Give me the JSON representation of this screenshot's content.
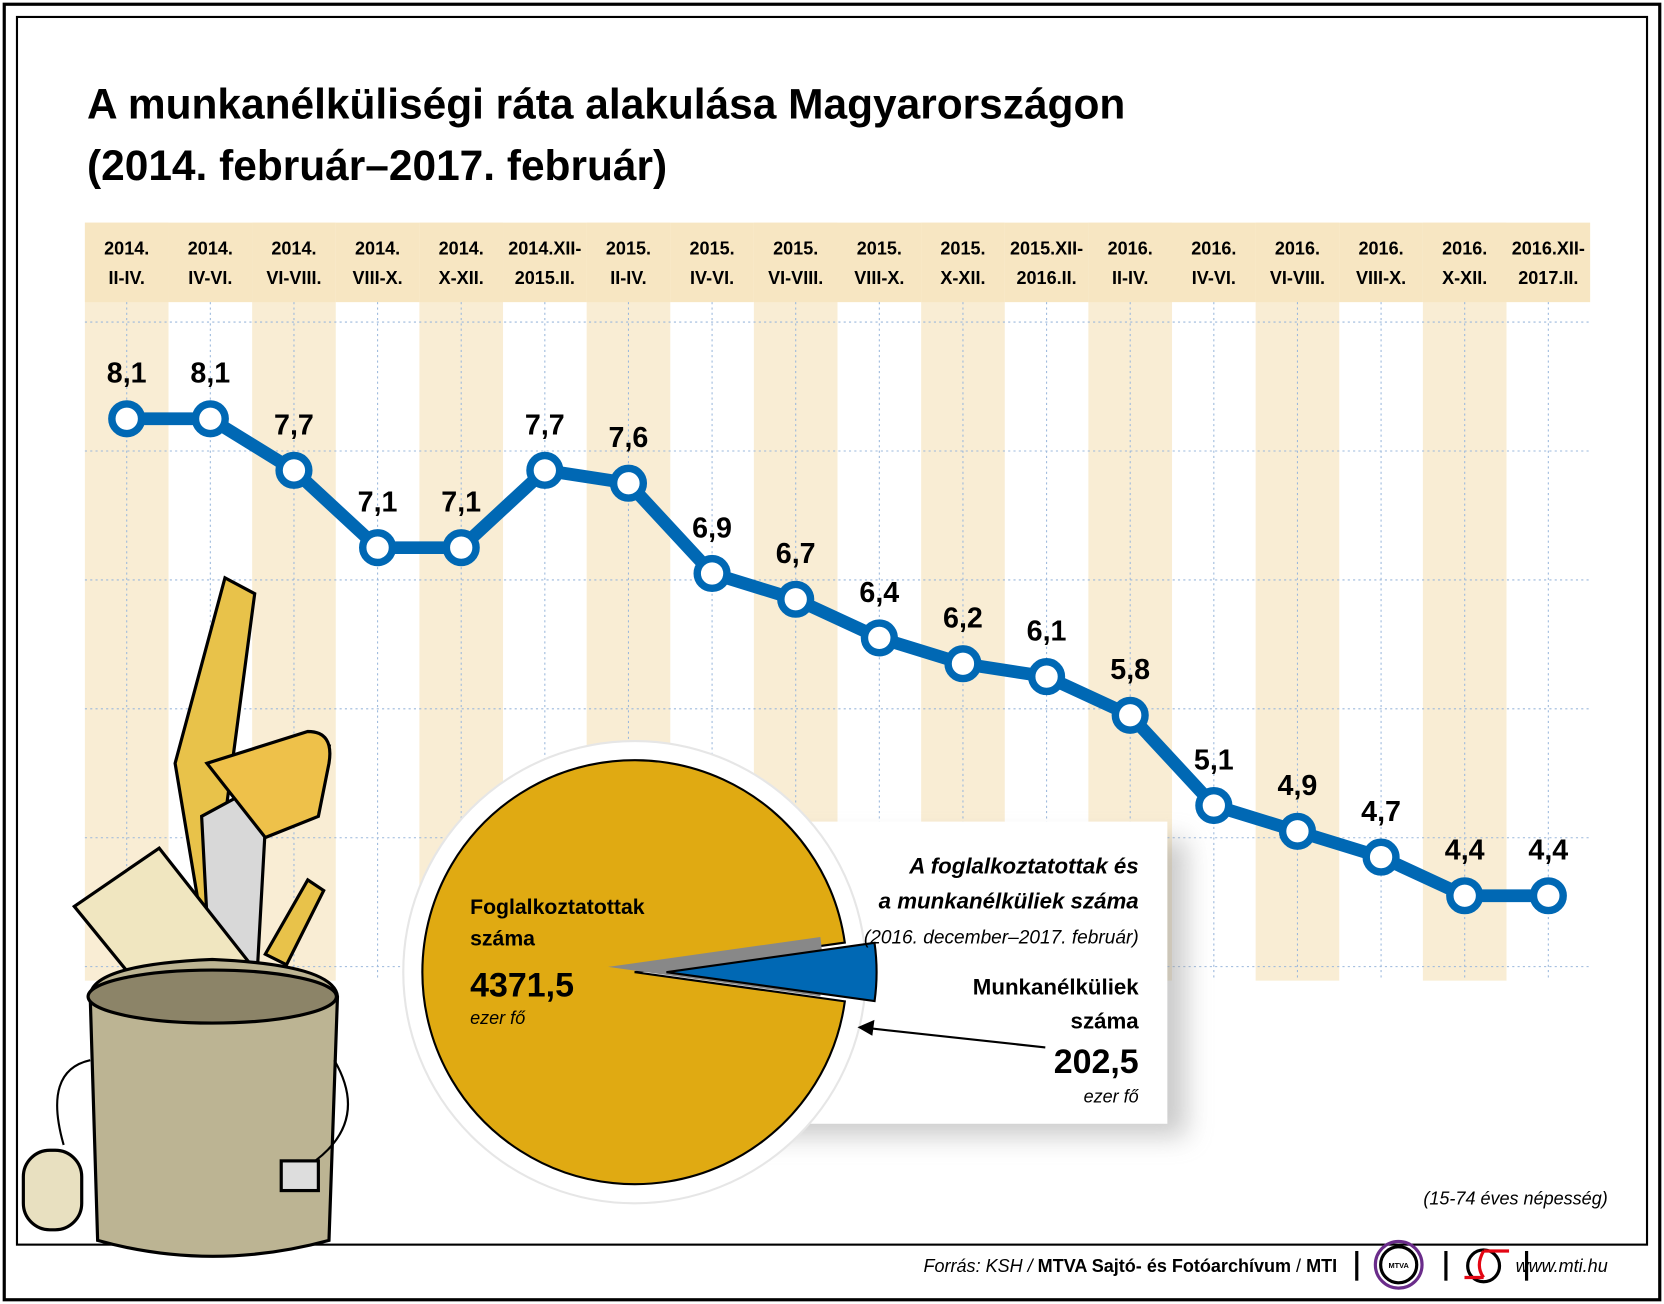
{
  "chart_data": {
    "type": "line",
    "title": "A munkanélküliségi ráta alakulása Magyarországon",
    "subtitle": "(2014. február–2017. február)",
    "categories": [
      [
        "2014.",
        "II-IV."
      ],
      [
        "2014.",
        "IV-VI."
      ],
      [
        "2014.",
        "VI-VIII."
      ],
      [
        "2014.",
        "VIII-X."
      ],
      [
        "2014.",
        "X-XII."
      ],
      [
        "2014.XII-",
        "2015.II."
      ],
      [
        "2015.",
        "II-IV."
      ],
      [
        "2015.",
        "IV-VI."
      ],
      [
        "2015.",
        "VI-VIII."
      ],
      [
        "2015.",
        "VIII-X."
      ],
      [
        "2015.",
        "X-XII."
      ],
      [
        "2015.XII-",
        "2016.II."
      ],
      [
        "2016.",
        "II-IV."
      ],
      [
        "2016.",
        "IV-VI."
      ],
      [
        "2016.",
        "VI-VIII."
      ],
      [
        "2016.",
        "VIII-X."
      ],
      [
        "2016.",
        "X-XII."
      ],
      [
        "2016.XII-",
        "2017.II."
      ]
    ],
    "values": [
      8.1,
      8.1,
      7.7,
      7.1,
      7.1,
      7.7,
      7.6,
      6.9,
      6.7,
      6.4,
      6.2,
      6.1,
      5.8,
      5.1,
      4.9,
      4.7,
      4.4,
      4.4
    ],
    "value_labels": [
      "8,1",
      "8,1",
      "7,7",
      "7,1",
      "7,1",
      "7,7",
      "7,6",
      "6,9",
      "6,7",
      "6,4",
      "6,2",
      "6,1",
      "5,8",
      "5,1",
      "4,9",
      "4,7",
      "4,4",
      "4,4"
    ],
    "line_color": "#0068b4",
    "band_color": "#f7e6c2",
    "grid": true,
    "note": "(15-74 éves népesség)",
    "pie": {
      "type": "pie",
      "title_line1": "A foglalkoztatottak és",
      "title_line2": "a munkanélküliek száma",
      "period": "(2016. december–2017. február)",
      "slices": [
        {
          "label_line1": "Foglalkoztatottak",
          "label_line2": "száma",
          "value": 4371.5,
          "value_label": "4371,5",
          "unit": "ezer fő",
          "color": "#e0aa12"
        },
        {
          "label_line1": "Munkanélküliek",
          "label_line2": "száma",
          "value": 202.5,
          "value_label": "202,5",
          "unit": "ezer fő",
          "color": "#0068b4"
        }
      ]
    }
  },
  "footer": {
    "source_prefix": "Forrás: KSH / ",
    "source_bold": "MTVA Sajtó- és Fotóarchívum",
    "source_sep": " / ",
    "source_mti": "MTI",
    "logo1": "MTVA",
    "url": "www.mti.hu"
  }
}
